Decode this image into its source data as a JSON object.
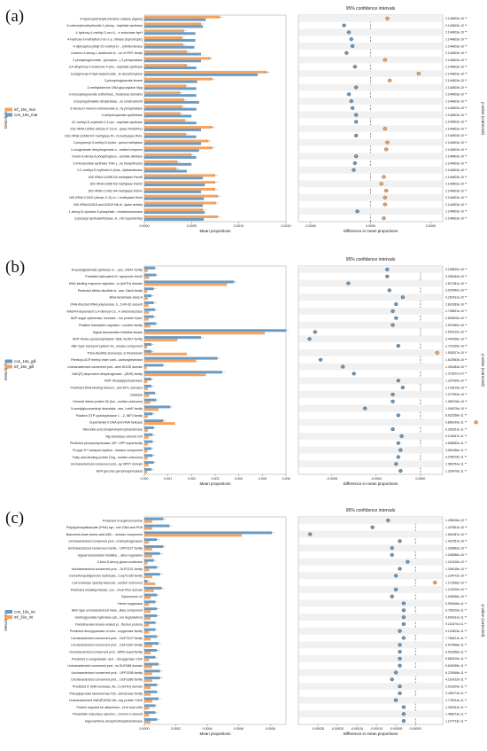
{
  "chart_data": [
    {
      "panel_label": "(a)",
      "type": "bar",
      "ci_title": "95% confidence intervals",
      "legend": [
        {
          "name": "inf_16s_mar",
          "color": "#f4a460"
        },
        {
          "name": "con_16s_mar",
          "color": "#6a9bc3"
        }
      ],
      "ylabel": "Description",
      "xlabel": "Mean proportions",
      "xlim": [
        0,
        0.0015
      ],
      "xticks": [
        "0.0000",
        "0.0005",
        "0.0010",
        "0.0015"
      ],
      "diff_xlabel": "Difference in mean proportions",
      "diff_xlim": [
        -0.0006,
        0.0006
      ],
      "diff_xticks": [
        "-0.0005",
        "0.0000",
        "0.0005"
      ],
      "pvalue_label": "p-value (corrected)",
      "categories": [
        "6-hydroxytetrahydronicotine oxidase (ligase)",
        "6-carboxyhexahydroxide-1-phosp...naphtale synthase",
        "4-hydroxy-4-methyl-2-oxo-4-...e reductase IspH",
        "4-hydroxy-3-methylbut-2-en-1-y...nthase (IspG/GcpE)",
        "4-diphosphocytidyl-2C-methyl-D-...rythritol kinase",
        "4-amino-4-deoxy-L-arabinose 8-...se of PMT family",
        "2-phosphoglucerate...(phospho...) 2-phosphatase",
        "3,4-dihydroxy-2-butanone 4-pho...naphtale synthase",
        "3-polyprenyl-4-hydroxybenzoate...te decarboxylase",
        "3-phosphoglycerate kinase",
        "3-methyladenine DNA glycosylase Mpg",
        "3-mercaptopyruvate sulfurtrans...hodanese domains",
        "3-isopropylmalate dehydratase...se small subunit",
        "3-deoxy-D-manno-octulosonate 8...hy phosphatase",
        "3-dehydroquinate synthetase",
        "2C-methyl-D-erythritol 2,4-cyc...naphtale synthase",
        "23S rRNA U2552 (ribose-2'-O)-m...lyase RlmE/FtsJ",
        "23S rRNA G2069 N7-methylase Rl...N-methylase RlmL",
        "2-polyprenyl-3-methyl-5-hydro...quinol methylase",
        "2-oxoglutarate dehydrogenase c...related enzymes",
        "2-keto-3-deoxy-6-phosphogluco...acetate aldolase",
        "2-iminoacetate synthase ThiH (...ne biosynthesis)",
        "2-C-methyl-D-erythritol 4-phos...dyltransferase",
        "16S rRNA U1498 N3-methylase RsmE",
        "16S rRNA G966 N2-methylase RsmD",
        "16S rRNA C1402 N4-methylase RsmH",
        "16S rRNA C1402 (ribose-2'-O) m...l methylase RsmI",
        "16S rRNA A1518 and A1519 N6-di...lyase activity",
        "1-deoxy-D-xylulose 5-phosphate...reductoisomerase",
        "(Lipo)acyl synthase/thylase, H...HD superfamily)"
      ],
      "series": [
        {
          "values": [
            0.0008,
            0.0006,
            0.00042,
            0.0004,
            0.00041,
            0.00045,
            0.0007,
            0.00045,
            0.0013,
            0.00072,
            0.00044,
            0.00038,
            0.00042,
            0.0004,
            0.00038,
            0.00043,
            0.00072,
            0.00044,
            0.00068,
            0.00072,
            0.0005,
            0.00035,
            0.00034,
            0.00075,
            0.00075,
            0.00075,
            0.00078,
            0.00076,
            0.00062,
            0.00078
          ]
        },
        {
          "values": [
            0.00065,
            0.00062,
            0.00054,
            0.00054,
            0.00053,
            0.0006,
            0.0006,
            0.00055,
            0.0012,
            0.00056,
            0.00055,
            0.00055,
            0.00058,
            0.00055,
            0.0005,
            0.00055,
            0.0006,
            0.00055,
            0.0006,
            0.00058,
            0.00055,
            0.0005,
            0.00045,
            0.00062,
            0.00064,
            0.0006,
            0.00063,
            0.00062,
            0.00064,
            0.00063
          ]
        }
      ],
      "diff": [
        0.00014,
        -0.00022,
        -0.00018,
        -0.00016,
        -0.00015,
        -0.0002,
        0.00012,
        -0.00013,
        0.0004,
        0.00016,
        -0.00012,
        -0.00018,
        -0.00016,
        -0.00015,
        -0.00012,
        -0.00012,
        0.00012,
        -0.00012,
        0.00014,
        0.00013,
        -0.00012,
        -0.00013,
        -0.00014,
        0.00011,
        9e-05,
        0.00013,
        0.00012,
        0.00012,
        -0.00011,
        0.00011
      ],
      "pvalues": [
        "2.144803e-10 **",
        "2.144803e-10 **",
        "2.144803e-10 **",
        "2.144803e-10 **",
        "2.144803e-10 **",
        "2.144803e-10 **",
        "2.144803e-10 **",
        "2.144803e-10 **",
        "2.144803e-10 **",
        "2.144803e-10 **",
        "2.144803e-10 **",
        "2.144803e-10 **",
        "2.144803e-10 **",
        "2.144803e-10 **",
        "2.144803e-10 **",
        "2.144803e-10 **",
        "2.144803e-10 **",
        "2.144803e-10 **",
        "2.144803e-10 **",
        "2.144803e-10 **",
        "2.144803e-10 **",
        "2.144803e-10 **",
        "2.144803e-10 **",
        "2.144803e-10 **",
        "2.144803e-10 **",
        "2.144803e-10 **",
        "2.144803e-10 **",
        "2.144803e-10 **",
        "2.144803e-10 **",
        "2.144803e-10 **"
      ]
    },
    {
      "panel_label": "(b)",
      "type": "bar",
      "ci_title": "95% confidence intervals",
      "legend": [
        {
          "name": "con_16s_gill",
          "color": "#6a9bc3"
        },
        {
          "name": "inf_16s_gill",
          "color": "#f4a460"
        }
      ],
      "ylabel": "Description",
      "xlabel": "Mean proportions",
      "xlim": [
        0,
        0.006
      ],
      "xticks": [
        "0.000",
        "0.001",
        "0.002",
        "0.003",
        "0.004",
        "0.005",
        "0.006"
      ],
      "diff_xlabel": "Difference in mean proportions",
      "diff_xlim": [
        -0.0011,
        0.0002
      ],
      "diff_xticks": [
        "-0.0008",
        "-0.0004",
        "0.0000"
      ],
      "pvalue_label": "p-value (corrected)",
      "categories": [
        "N-acetylglutamate synthase or ...ase, GNAT family",
        "Predicted tailcoated-N+ symporter HeuR",
        "DNA-binding response regulator...in (wHTH) domain",
        "Predicted dithiol-disulfide is...ase, DsbA family",
        "Beta-lactamase class A",
        "DNA-directed RNA polymerase, b...t140 kD subunit",
        "NADPH-dependent 2,4-dienoyl-Co...4 oxidoreductase",
        "ADP-sugar epimerase, includes ...ion protein EpsC",
        "Putative translation regulator...t protein family",
        "Signal transduction histidine kinase",
        "ADP-ribose pyrophosphatase YjhB, NUDIX family",
        "ABC-type transport system inv...inease component",
        "Thiol-disulfide isomerase or thioredoxin",
        "Pimeloyl-ACP methyl ester carb...carboxylesterase",
        "Uncharacterized conserved prot...ains HDOD domain",
        "NAD(P)-dependent dehydrogenase...(SDR) family",
        "ADP-ribosylglycohydrolase",
        "Predicted DNA-binding transcri...and WYL domains",
        "Catalase",
        "General stress protein 26 (fun...unction unknown)",
        "N-acetylglucosaminyl deacetyla...ase, LmbE family",
        "Putative GTP cyclohydrolase 1 ...2, NIF3 family",
        "Superfamily II DNA and RNA helicase",
        "Microbial acid phosphohydroxytransferase",
        "Mg-chelatase subunit ChlI",
        "Predicted phosphohydrolase, MP...HPP superfamily",
        "Tfr-type H+ transport system...mbrane component",
        "Fatty acid-binding protein Deg...unction unknown)",
        "Uncharacterized conserved prot...ay SPRY domain",
        "ADP-glucose pyrophosphorylase"
      ],
      "series": [
        {
          "values": [
            0.00045,
            0.0005,
            0.0038,
            0.0004,
            0.0003,
            0.0004,
            0.00045,
            0.0004,
            0.0005,
            0.006,
            0.0024,
            0.0003,
            0.0003,
            0.0031,
            0.0008,
            0.0033,
            0.0003,
            0.0003,
            0.00045,
            0.0005,
            0.0011,
            0.00035,
            0.0008,
            0.0004,
            0.00035,
            0.00035,
            0.0003,
            0.00035,
            0.0004,
            0.0003
          ]
        },
        {
          "values": [
            0.00015,
            0.0002,
            0.0035,
            0.00012,
            0.00015,
            0.00018,
            0.0002,
            0.00018,
            0.00025,
            0.0051,
            0.0014,
            0.00012,
            0.0018,
            0.0022,
            0.0001,
            0.0026,
            0.00012,
            0.00015,
            0.0002,
            0.00025,
            0.0006,
            0.00015,
            0.0013,
            0.00015,
            0.00018,
            0.00015,
            0.00012,
            0.00015,
            0.00018,
            0.00012
          ]
        }
      ],
      "diff": [
        -0.0003,
        -0.0003,
        -0.00065,
        -0.00028,
        -0.00016,
        -0.00022,
        -0.00025,
        -0.00022,
        -0.00025,
        -0.00095,
        -0.001,
        -0.0002,
        0.00015,
        -0.0009,
        -0.0007,
        -0.0006,
        -0.0002,
        -0.00016,
        -0.00025,
        -0.00025,
        -0.0005,
        -0.0002,
        0.0005,
        -0.00025,
        -0.00017,
        -0.0002,
        -0.00018,
        -0.0002,
        -0.00022,
        -0.00018
      ],
      "pvalues": [
        "3.159820e-10 **",
        "3.208184e-10 **",
        "2.871281e-10 **",
        "3.937840e-10 **",
        "3.252431e-10 **",
        "2.816283e-10 **",
        "2.735691e-10 **",
        "2.809625e-10 **",
        "2.537660e-10 **",
        "2.591410e-10 **",
        "3.444258e-10 **",
        "2.747325e-10 **",
        "1.592817e-10 **",
        "1.622963e-10 **",
        "1.491484e-10 **",
        "1.372811e-10 **",
        "1.237069e-10 **",
        "1.143419e-10 **",
        "1.077593e-10 **",
        "1.086728e-10 **",
        "1.006278e-10 **",
        "8.622266e-11 **",
        "6.896149e-11 **",
        "6.266251e-11 **",
        "6.143267e-11 **",
        "4.658980e-11 **",
        "3.550186e-11 **",
        "3.246575e-11 **",
        "2.966754e-11 **",
        "1.326476e-11 **"
      ]
    },
    {
      "panel_label": "(c)",
      "type": "bar",
      "ci_title": "95% confidence intervals",
      "legend": [
        {
          "name": "con_16s_int",
          "color": "#6a9bc3"
        },
        {
          "name": "inf_16s_int",
          "color": "#f4a460"
        }
      ],
      "ylabel": "Description",
      "xlabel": "Mean proportions",
      "xlim": [
        0,
        0.0009
      ],
      "xticks": [
        "0.0000",
        "0.0002",
        "0.0004",
        "0.0006",
        "0.0008"
      ],
      "diff_xlabel": "Difference in mean proportions",
      "diff_xlim": [
        -0.0003,
        7e-05
      ],
      "diff_xticks": [
        "-0.00025",
        "-0.00020",
        "-0.00015",
        "-0.00010",
        "-0.00005",
        "0.00000"
      ],
      "pvalue_label": "p-value (corrected)",
      "categories": [
        "Predicted N-acylhomoserine",
        "Poly(hydroxyalkanoate (PHA) syn...min DNA and PHA",
        "Branched-chain amino acid ABC-...imease component",
        "Uncharacterized conserved prot...d dehydrogenases",
        "Uncharacterized conserved memb... UPF0127 family",
        "Signal transduction histidine ...ation regulation",
        "3-keto-5-deoxy-glucuronokinase",
        "Uncharacterized conserved prot... DUF1131 family",
        "Demethoxyubiquinone hydroxyla...Coq7/Cat5 family",
        "Cell envelope opacity-associat...unction unknown)",
        "Predicted metalloprotease, con...mnal PDZ domain",
        "Cytochrome c2",
        "Heme oxygenase",
        "ABC-type uncharacterized trans...iliary component",
        "Urethoglycolate hydrolase (all...om degradation)",
        "Pantothenate kinase-related pr...ffected protein)",
        "Predicted deoxyguanase of ecto...oxygenase family",
        "Uncharacterized conserved prot... DUF2147 family",
        "Uncharacterized conserved prot... DUF1687 family",
        "Uncharacterized conserved prot...APB3 superfamily",
        "Predicted 2-oxoglutarate- and ...dioxygenase YbiX",
        "Uncharacterized conserved prot...ns DUF488 domain",
        "Uncharacterized conserved prot... UPF0298 family",
        "Uncharacterized conserved prot... DUF1680 family",
        "Predicted 5' DNA nuclease, flo...b (H3TH) domain",
        "Phenylpyruvate tautomerase Ppt...atumerase family",
        "Uncharacterized NAD(P)/FAD-bin...ing protein YdhS",
        "Protein required for attachmen...nt to host cells",
        "Thiosulfate reductase cytochro...chrome b subunit",
        "Hypoxanthine phosphoribosyltransferase"
      ],
      "series": [
        {
          "values": [
            0.00012,
            0.00016,
            0.00081,
            8e-05,
            0.00012,
            0.0001,
            6e-05,
            8e-05,
            0.0001,
            2e-05,
            0.00011,
            8e-05,
            7e-05,
            8e-05,
            8e-05,
            7e-05,
            7e-05,
            8e-05,
            9e-05,
            8e-05,
            7e-05,
            9e-05,
            0.0001,
            0.0001,
            8e-05,
            8e-05,
            9e-05,
            7e-05,
            7e-05,
            8e-05
          ]
        },
        {
          "values": [
            5e-05,
            5e-05,
            0.00062,
            3e-05,
            5e-05,
            5e-05,
            2e-05,
            3e-05,
            5e-05,
            7e-05,
            6e-05,
            4e-05,
            3e-05,
            4e-05,
            4e-05,
            3e-05,
            3e-05,
            4e-05,
            5e-05,
            4e-05,
            3e-05,
            5e-05,
            5e-05,
            5e-05,
            4e-05,
            4e-05,
            5e-05,
            3e-05,
            3e-05,
            4e-05
          ]
        }
      ],
      "diff": [
        -7e-05,
        -0.00011,
        -0.00027,
        -4e-05,
        -6e-05,
        -6e-05,
        -2e-05,
        -4e-05,
        -5e-05,
        5e-05,
        -5e-05,
        -6e-05,
        -3e-05,
        -3e-05,
        -3e-05,
        -3e-05,
        -4e-05,
        -3e-05,
        -4e-05,
        -4e-05,
        -4e-05,
        -4e-05,
        -5e-05,
        -6e-05,
        -4e-05,
        -4e-05,
        -5e-05,
        -3e-05,
        -3e-05,
        -3e-05
      ],
      "pvalues": [
        "1.496006e-10 **",
        "1.407861e-10 **",
        "1.651087e-10 **",
        "1.437257e-10 **",
        "1.290662e-10 **",
        "1.246086e-10 **",
        "1.214918e-10 **",
        "1.306018e-10 **",
        "1.224472e-10 **",
        "1.170396e-10 **",
        "1.122200e-10 **",
        "1.026058e-10 **",
        "9.992648e-11 **",
        "9.765100e-11 **",
        "9.645191e-11 **",
        "9.211870e-11 **",
        "9.130403e-11 **",
        "7.768421e-11 **",
        "6.579598e-11 **",
        "6.516058e-11 **",
        "6.660216e-11 **",
        "5.624095e-11 **",
        "6.225068e-11 **",
        "4.161423e-11 **",
        "3.913029e-11 **",
        "3.435174e-11 **",
        "2.776024e-11 **",
        "1.492261e-11 **",
        "1.466573e-11 **",
        "1.147723e-11 **"
      ]
    }
  ]
}
